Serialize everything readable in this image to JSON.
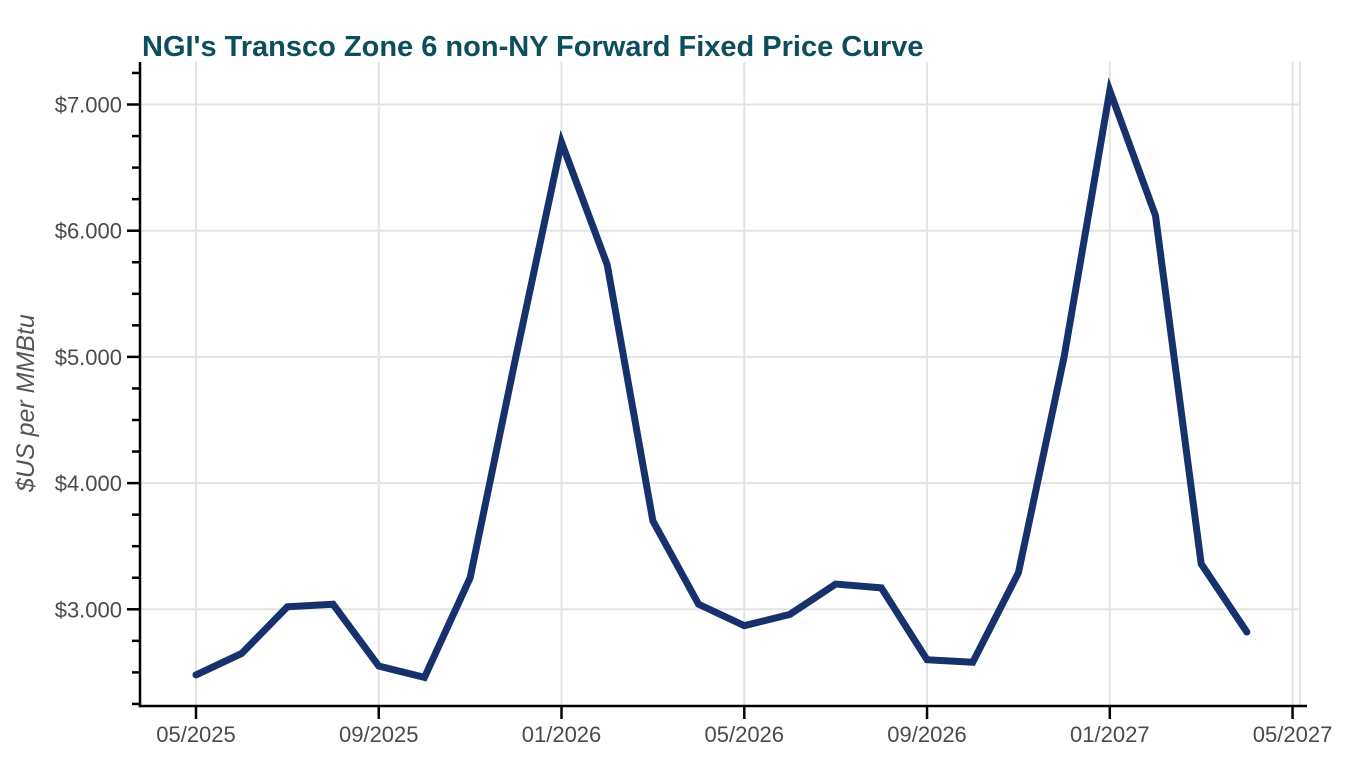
{
  "chart_data": {
    "type": "line",
    "title": "NGI's Transco Zone 6 non-NY Forward Fixed Price Curve",
    "ylabel": "$US per MMBtu",
    "xlabel": "",
    "series_name": "Transco Zone 6 non-NY forward fixed price",
    "x": [
      "05/2025",
      "06/2025",
      "07/2025",
      "08/2025",
      "09/2025",
      "10/2025",
      "11/2025",
      "12/2025",
      "01/2026",
      "02/2026",
      "03/2026",
      "04/2026",
      "05/2026",
      "06/2026",
      "07/2026",
      "08/2026",
      "09/2026",
      "10/2026",
      "11/2026",
      "12/2026",
      "01/2027",
      "02/2027",
      "03/2027",
      "04/2027"
    ],
    "values": [
      2.48,
      2.65,
      3.02,
      3.04,
      2.55,
      2.46,
      3.25,
      5.0,
      6.7,
      5.73,
      3.7,
      3.04,
      2.87,
      2.96,
      3.2,
      3.17,
      2.6,
      2.58,
      3.29,
      5.0,
      7.11,
      6.12,
      3.36,
      2.82
    ],
    "xtick_labels": [
      "05/2025",
      "09/2025",
      "01/2026",
      "05/2026",
      "09/2026",
      "01/2027",
      "05/2027"
    ],
    "xtick_month_interval": 4,
    "ytick_values": [
      3,
      4,
      5,
      6,
      7
    ],
    "ytick_labels": [
      "$3.000",
      "$4.000",
      "$5.000",
      "$6.000",
      "$7.000"
    ],
    "ytick_minor_step": 0.25,
    "ylim": [
      2.23,
      7.34
    ],
    "grid": true,
    "legend_position": "none",
    "colors": {
      "line": "#16316b",
      "title": "#0d4e5e",
      "grid": "#e3e3e3",
      "axis": "#000000",
      "tick_labels": "#4a4a4a",
      "axis_label": "#555555",
      "background": "#ffffff"
    }
  }
}
